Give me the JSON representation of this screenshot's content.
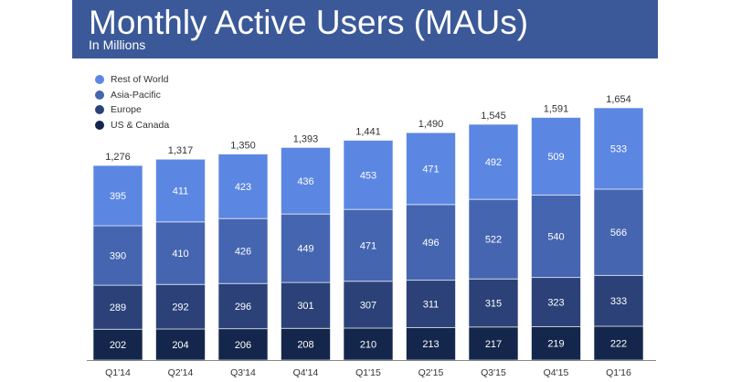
{
  "colors": {
    "banner": "#3b5998"
  },
  "chart_data": {
    "type": "bar",
    "stacked": true,
    "title": "Monthly Active Users (MAUs)",
    "subtitle": "In Millions",
    "legend_position": "top-left",
    "grid": false,
    "categories": [
      "Q1'14",
      "Q2'14",
      "Q3'14",
      "Q4'14",
      "Q1'15",
      "Q2'15",
      "Q3'15",
      "Q4'15",
      "Q1'16"
    ],
    "totals": [
      "1,276",
      "1,317",
      "1,350",
      "1,393",
      "1,441",
      "1,490",
      "1,545",
      "1,591",
      "1,654"
    ],
    "series": [
      {
        "name": "US & Canada",
        "color": "#14264b",
        "values": [
          202,
          204,
          206,
          208,
          210,
          213,
          217,
          219,
          222
        ]
      },
      {
        "name": "Europe",
        "color": "#2b4178",
        "values": [
          289,
          292,
          296,
          301,
          307,
          311,
          315,
          323,
          333
        ]
      },
      {
        "name": "Asia-Pacific",
        "color": "#4565b0",
        "values": [
          390,
          410,
          426,
          449,
          471,
          496,
          522,
          540,
          566
        ]
      },
      {
        "name": "Rest of World",
        "color": "#5b87e2",
        "values": [
          395,
          411,
          423,
          436,
          453,
          471,
          492,
          509,
          533
        ]
      }
    ],
    "ylim": [
      0,
      1654
    ]
  }
}
